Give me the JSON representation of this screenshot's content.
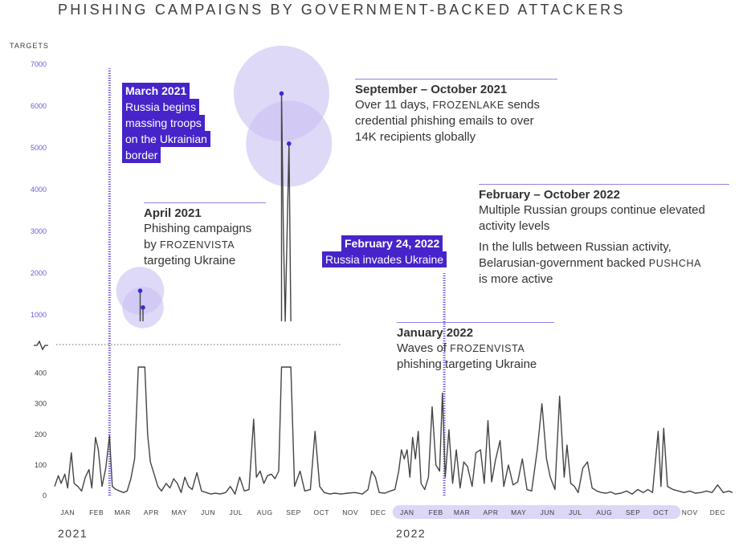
{
  "title": "PHISHING CAMPAIGNS BY GOVERNMENT-BACKED ATTACKERS",
  "colors": {
    "line": "#444444",
    "accent": "#4624c9",
    "bubble": "#c9bff3",
    "highlight": "#ddd6f7",
    "tick": "#6a5ed6"
  },
  "chart_data": {
    "type": "line",
    "ylabel": "TARGETS",
    "axis_break": true,
    "y_ticks_upper": [
      "1000",
      "2000",
      "3000",
      "4000",
      "5000",
      "6000",
      "7000"
    ],
    "y_ticks_lower": [
      "0",
      "100",
      "200",
      "300",
      "400"
    ],
    "ylim_lower": [
      0,
      420
    ],
    "ylim_upper": [
      850,
      7000
    ],
    "xlim": [
      "2021-01-01",
      "2022-12-31"
    ],
    "months": [
      "JAN",
      "FEB",
      "MAR",
      "APR",
      "MAY",
      "JUN",
      "JUL",
      "AUG",
      "SEP",
      "OCT",
      "NOV",
      "DEC",
      "JAN",
      "FEB",
      "MAR",
      "APR",
      "MAY",
      "JUN",
      "JUL",
      "AUG",
      "SEP",
      "OCT",
      "NOV",
      "DEC"
    ],
    "years": [
      "2021",
      "2022"
    ],
    "highlighted_months": [
      "2022-01",
      "2022-10"
    ],
    "series": [
      {
        "points": [
          [
            "2021-01-01",
            30
          ],
          [
            "2021-01-05",
            65
          ],
          [
            "2021-01-08",
            40
          ],
          [
            "2021-01-12",
            70
          ],
          [
            "2021-01-15",
            25
          ],
          [
            "2021-01-19",
            140
          ],
          [
            "2021-01-22",
            40
          ],
          [
            "2021-01-26",
            30
          ],
          [
            "2021-01-30",
            15
          ],
          [
            "2021-02-03",
            60
          ],
          [
            "2021-02-07",
            85
          ],
          [
            "2021-02-10",
            25
          ],
          [
            "2021-02-14",
            190
          ],
          [
            "2021-02-17",
            150
          ],
          [
            "2021-02-21",
            30
          ],
          [
            "2021-02-25",
            90
          ],
          [
            "2021-03-01",
            195
          ],
          [
            "2021-03-04",
            30
          ],
          [
            "2021-03-08",
            20
          ],
          [
            "2021-03-12",
            15
          ],
          [
            "2021-03-16",
            10
          ],
          [
            "2021-03-20",
            15
          ],
          [
            "2021-03-24",
            55
          ],
          [
            "2021-03-28",
            120
          ],
          [
            "2021-04-01",
            420
          ],
          [
            "2021-04-03",
            1580
          ],
          [
            "2021-04-05",
            420
          ],
          [
            "2021-04-06",
            1180
          ],
          [
            "2021-04-08",
            420
          ],
          [
            "2021-04-11",
            200
          ],
          [
            "2021-04-14",
            110
          ],
          [
            "2021-04-18",
            70
          ],
          [
            "2021-04-22",
            30
          ],
          [
            "2021-04-26",
            15
          ],
          [
            "2021-05-01",
            40
          ],
          [
            "2021-05-05",
            25
          ],
          [
            "2021-05-09",
            55
          ],
          [
            "2021-05-13",
            40
          ],
          [
            "2021-05-17",
            10
          ],
          [
            "2021-05-21",
            60
          ],
          [
            "2021-05-25",
            30
          ],
          [
            "2021-05-29",
            20
          ],
          [
            "2021-06-03",
            75
          ],
          [
            "2021-06-08",
            15
          ],
          [
            "2021-06-13",
            10
          ],
          [
            "2021-06-18",
            5
          ],
          [
            "2021-06-23",
            8
          ],
          [
            "2021-06-28",
            5
          ],
          [
            "2021-07-04",
            10
          ],
          [
            "2021-07-09",
            30
          ],
          [
            "2021-07-14",
            5
          ],
          [
            "2021-07-19",
            60
          ],
          [
            "2021-07-24",
            15
          ],
          [
            "2021-07-29",
            20
          ],
          [
            "2021-08-03",
            250
          ],
          [
            "2021-08-06",
            60
          ],
          [
            "2021-08-10",
            80
          ],
          [
            "2021-08-14",
            40
          ],
          [
            "2021-08-18",
            65
          ],
          [
            "2021-08-22",
            70
          ],
          [
            "2021-08-26",
            55
          ],
          [
            "2021-08-30",
            80
          ],
          [
            "2021-09-02",
            6300
          ],
          [
            "2021-09-04",
            3000
          ],
          [
            "2021-09-06",
            850
          ],
          [
            "2021-09-10",
            5100
          ],
          [
            "2021-09-12",
            850
          ],
          [
            "2021-09-16",
            30
          ],
          [
            "2021-09-22",
            80
          ],
          [
            "2021-09-27",
            15
          ],
          [
            "2021-10-03",
            20
          ],
          [
            "2021-10-08",
            210
          ],
          [
            "2021-10-13",
            30
          ],
          [
            "2021-10-18",
            10
          ],
          [
            "2021-10-24",
            5
          ],
          [
            "2021-10-29",
            8
          ],
          [
            "2021-11-05",
            5
          ],
          [
            "2021-11-12",
            8
          ],
          [
            "2021-11-20",
            10
          ],
          [
            "2021-11-28",
            5
          ],
          [
            "2021-12-04",
            20
          ],
          [
            "2021-12-08",
            80
          ],
          [
            "2021-12-12",
            60
          ],
          [
            "2021-12-16",
            10
          ],
          [
            "2021-12-22",
            8
          ],
          [
            "2021-12-28",
            15
          ],
          [
            "2022-01-02",
            20
          ],
          [
            "2022-01-06",
            80
          ],
          [
            "2022-01-09",
            150
          ],
          [
            "2022-01-12",
            120
          ],
          [
            "2022-01-15",
            150
          ],
          [
            "2022-01-18",
            60
          ],
          [
            "2022-01-21",
            190
          ],
          [
            "2022-01-24",
            120
          ],
          [
            "2022-01-27",
            210
          ],
          [
            "2022-01-30",
            40
          ],
          [
            "2022-02-03",
            20
          ],
          [
            "2022-02-07",
            60
          ],
          [
            "2022-02-11",
            290
          ],
          [
            "2022-02-15",
            100
          ],
          [
            "2022-02-19",
            80
          ],
          [
            "2022-02-22",
            335
          ],
          [
            "2022-02-25",
            60
          ],
          [
            "2022-03-01",
            215
          ],
          [
            "2022-03-05",
            40
          ],
          [
            "2022-03-09",
            150
          ],
          [
            "2022-03-13",
            25
          ],
          [
            "2022-03-17",
            110
          ],
          [
            "2022-03-21",
            95
          ],
          [
            "2022-03-26",
            30
          ],
          [
            "2022-03-30",
            140
          ],
          [
            "2022-04-04",
            150
          ],
          [
            "2022-04-08",
            40
          ],
          [
            "2022-04-12",
            245
          ],
          [
            "2022-04-16",
            45
          ],
          [
            "2022-04-20",
            115
          ],
          [
            "2022-04-25",
            180
          ],
          [
            "2022-04-29",
            30
          ],
          [
            "2022-05-04",
            100
          ],
          [
            "2022-05-09",
            35
          ],
          [
            "2022-05-14",
            45
          ],
          [
            "2022-05-19",
            120
          ],
          [
            "2022-05-24",
            20
          ],
          [
            "2022-05-29",
            15
          ],
          [
            "2022-06-04",
            150
          ],
          [
            "2022-06-09",
            300
          ],
          [
            "2022-06-14",
            120
          ],
          [
            "2022-06-18",
            60
          ],
          [
            "2022-06-23",
            20
          ],
          [
            "2022-06-28",
            325
          ],
          [
            "2022-07-03",
            60
          ],
          [
            "2022-07-06",
            165
          ],
          [
            "2022-07-10",
            40
          ],
          [
            "2022-07-14",
            30
          ],
          [
            "2022-07-18",
            10
          ],
          [
            "2022-07-23",
            90
          ],
          [
            "2022-07-28",
            110
          ],
          [
            "2022-08-02",
            25
          ],
          [
            "2022-08-07",
            15
          ],
          [
            "2022-08-12",
            10
          ],
          [
            "2022-08-17",
            8
          ],
          [
            "2022-08-22",
            12
          ],
          [
            "2022-08-27",
            5
          ],
          [
            "2022-09-02",
            8
          ],
          [
            "2022-09-08",
            15
          ],
          [
            "2022-09-14",
            5
          ],
          [
            "2022-09-20",
            20
          ],
          [
            "2022-09-26",
            10
          ],
          [
            "2022-10-01",
            20
          ],
          [
            "2022-10-06",
            10
          ],
          [
            "2022-10-12",
            210
          ],
          [
            "2022-10-15",
            30
          ],
          [
            "2022-10-18",
            220
          ],
          [
            "2022-10-22",
            30
          ],
          [
            "2022-10-28",
            20
          ],
          [
            "2022-11-03",
            15
          ],
          [
            "2022-11-09",
            10
          ],
          [
            "2022-11-15",
            15
          ],
          [
            "2022-11-21",
            8
          ],
          [
            "2022-11-27",
            10
          ],
          [
            "2022-12-03",
            15
          ],
          [
            "2022-12-09",
            10
          ],
          [
            "2022-12-15",
            35
          ],
          [
            "2022-12-21",
            10
          ],
          [
            "2022-12-27",
            15
          ],
          [
            "2022-12-31",
            10
          ]
        ]
      }
    ],
    "markers": [
      {
        "date": "2021-04-03",
        "value": 1580
      },
      {
        "date": "2021-04-06",
        "value": 1180
      },
      {
        "date": "2021-09-02",
        "value": 6300
      },
      {
        "date": "2021-09-10",
        "value": 5100
      }
    ],
    "event_lines": [
      {
        "date": "2021-03-01",
        "from": 0,
        "to": 6900
      },
      {
        "date": "2022-02-24",
        "from": 0,
        "to": 2000
      }
    ]
  },
  "annotations": {
    "march2021": {
      "head": "March 2021",
      "lines": [
        "Russia begins",
        "massing troops",
        "on the Ukrainian",
        "border"
      ]
    },
    "april2021": {
      "head": "April 2021",
      "line1": "Phishing campaigns",
      "line2_pre": "by ",
      "line2_sc": "FROZENVISTA",
      "line3": "targeting Ukraine"
    },
    "sep2021": {
      "head": "September – October 2021",
      "line1_pre": "Over 11 days, ",
      "line1_sc": "FROZENLAKE",
      "line1_post": " sends",
      "line2": "credential phishing emails to over",
      "line3": "14K recipients globally"
    },
    "feb2022": {
      "head": "February 24, 2022",
      "line1": "Russia invades Ukraine"
    },
    "jan2022": {
      "head": "January 2022",
      "line1": "Waves of ",
      "line1_sc": "FROZENVISTA",
      "line2": "phishing targeting Ukraine"
    },
    "febOct2022": {
      "head": "February – October 2022",
      "line1": "Multiple Russian groups continue elevated",
      "line2": "activity levels",
      "line3": "In the lulls between Russian activity,",
      "line4_pre": "Belarusian-government backed ",
      "line4_sc": "PUSHCHA",
      "line5": "is more active"
    }
  }
}
